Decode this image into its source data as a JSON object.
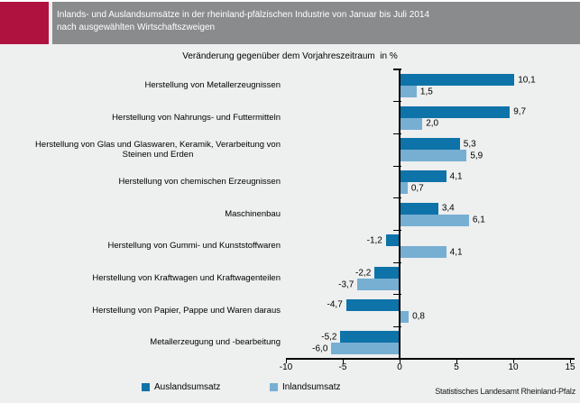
{
  "header": {
    "title_line1": "Inlands- und Auslandsumsätze in der rheinland-pfälzischen Industrie von Januar bis Juli 2014",
    "title_line2": "nach ausgewählten Wirtschaftszweigen"
  },
  "subtitle": "Veränderung gegenüber dem Vorjahreszeitraum  in %",
  "colors": {
    "accent_red": "#B01240",
    "header_gray": "#898B8D",
    "background": "#EEEFEF",
    "auslandsumsatz_blue": "#0E73A8",
    "inlandsumsatz_blue": "#77AFD3",
    "axis_black": "#000000"
  },
  "chart_data": {
    "type": "bar",
    "orientation": "horizontal",
    "title": "Inlands- und Auslandsumsätze in der rheinland-pfälzischen Industrie von Januar bis Juli 2014 nach ausgewählten Wirtschaftszweigen",
    "subtitle": "Veränderung gegenüber dem Vorjahreszeitraum in %",
    "categories": [
      "Herstellung von Metallerzeugnissen",
      "Herstellung von Nahrungs- und Futtermitteln",
      "Herstellung von Glas und Glaswaren, Keramik, Verarbeitung von\nSteinen und Erden",
      "Herstellung von chemischen Erzeugnissen",
      "Maschinenbau",
      "Herstellung von Gummi- und Kunststoffwaren",
      "Herstellung von Kraftwagen und Kraftwagenteilen",
      "Herstellung von Papier, Pappe und Waren daraus",
      "Metallerzeugung und -bearbeitung"
    ],
    "series": [
      {
        "name": "Auslandsumsatz",
        "color": "#0E73A8",
        "values": [
          10.1,
          9.7,
          5.3,
          4.1,
          3.4,
          -1.2,
          -2.2,
          -4.7,
          -5.2
        ]
      },
      {
        "name": "Inlandsumsatz",
        "color": "#77AFD3",
        "values": [
          1.5,
          2.0,
          5.9,
          0.7,
          6.1,
          4.1,
          -3.7,
          0.8,
          -6.0
        ]
      }
    ],
    "xlim": [
      -10,
      15
    ],
    "xticks": [
      -10,
      -5,
      0,
      5,
      10,
      15
    ],
    "grid": false,
    "value_labels": true,
    "decimal_separator": ",",
    "legend_position": "bottom"
  },
  "footer": {
    "source": "Statistisches Landesamt Rheinland-Pfalz"
  }
}
